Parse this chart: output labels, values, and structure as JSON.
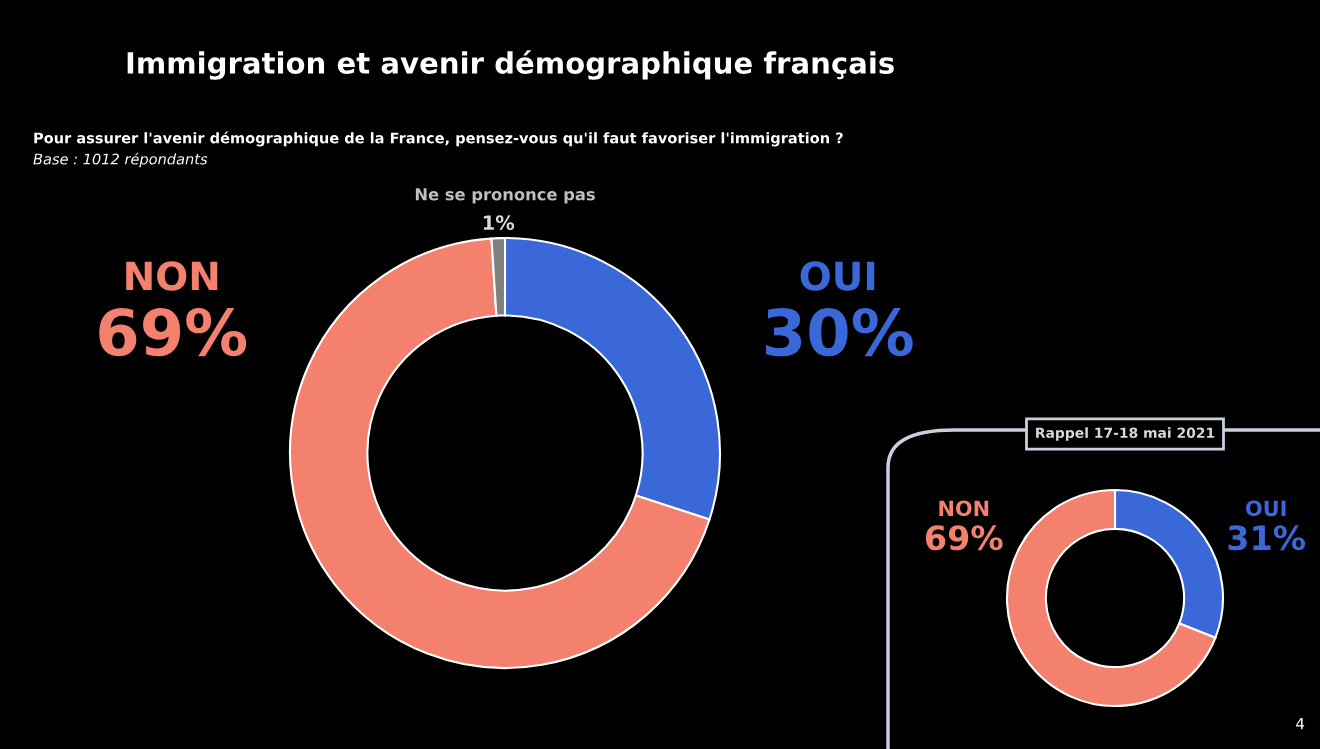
{
  "chart_data": [
    {
      "type": "donut",
      "title": "Immigration et avenir démographique français",
      "subtitle": "Pour assurer l'avenir démographique de la France, pensez-vous qu'il faut favoriser l'immigration ?",
      "annotations": [
        "Base : 1012 répondants"
      ],
      "categories": [
        "OUI",
        "NON",
        "Ne se prononce pas"
      ],
      "values": [
        30,
        69,
        1
      ],
      "colors": [
        "#3b68d9",
        "#f4806e",
        "#808080"
      ],
      "value_labels": [
        "30%",
        "69%",
        "1%"
      ]
    },
    {
      "type": "donut",
      "title": "Rappel 17-18 mai 2021",
      "annotations": [
        "4"
      ],
      "categories": [
        "OUI",
        "NON"
      ],
      "values": [
        31,
        69
      ],
      "colors": [
        "#3b68d9",
        "#f4806e"
      ],
      "value_labels": [
        "31%",
        "69%"
      ]
    }
  ]
}
